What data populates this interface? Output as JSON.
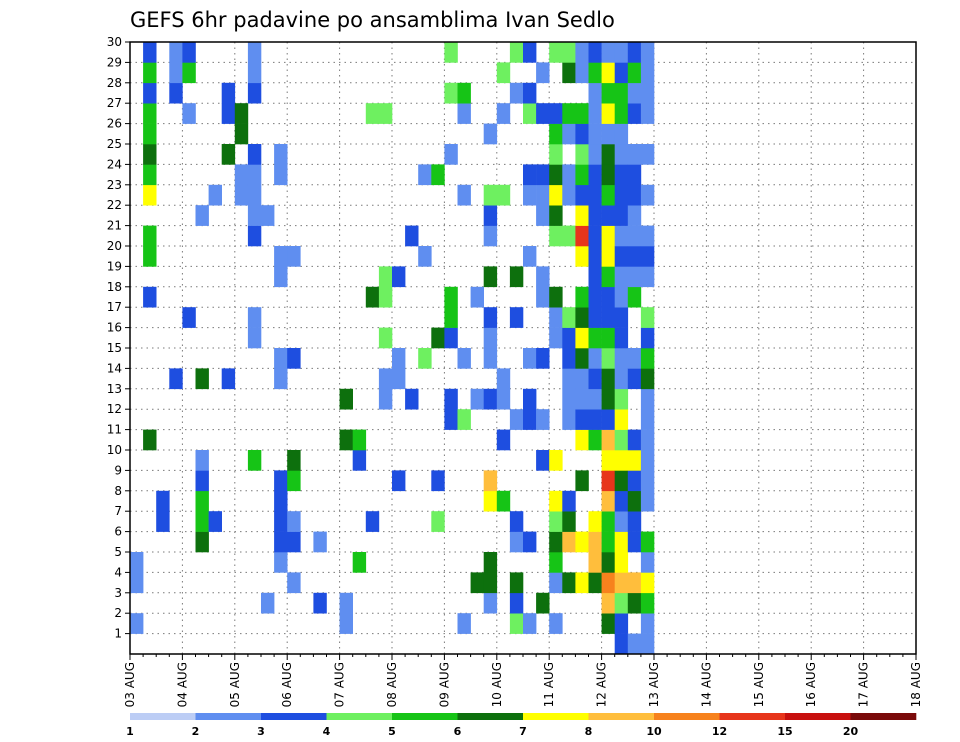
{
  "chart_data": {
    "type": "heatmap",
    "title": "GEFS 6hr padavine po ansamblima Ivan Sedlo",
    "x_axis": {
      "kind": "time",
      "steps_per_day": 4,
      "tick_labels": [
        "03 AUG",
        "04 AUG",
        "05 AUG",
        "06 AUG",
        "07 AUG",
        "08 AUG",
        "09 AUG",
        "10 AUG",
        "11 AUG",
        "12 AUG",
        "13 AUG",
        "14 AUG",
        "15 AUG",
        "16 AUG",
        "17 AUG",
        "18 AUG"
      ]
    },
    "y_axis": {
      "kind": "ensemble member",
      "range": [
        0,
        30
      ],
      "tick_labels": [
        "1",
        "2",
        "3",
        "4",
        "5",
        "6",
        "7",
        "8",
        "9",
        "10",
        "11",
        "12",
        "13",
        "14",
        "15",
        "16",
        "17",
        "18",
        "19",
        "20",
        "21",
        "22",
        "23",
        "24",
        "25",
        "26",
        "27",
        "28",
        "29",
        "30"
      ]
    },
    "grid": "dotted",
    "colorbar": {
      "position": "bottom",
      "levels": [
        "1",
        "2",
        "3",
        "4",
        "5",
        "6",
        "7",
        "8",
        "10",
        "12",
        "15",
        "20"
      ],
      "colors": [
        "#bccdf5",
        "#5f8ef0",
        "#1e4ee0",
        "#6ef060",
        "#16c416",
        "#0d700d",
        "#ffff00",
        "#ffbe3c",
        "#f7821d",
        "#e7351b",
        "#c8100e",
        "#7a0a0a"
      ]
    },
    "cells": [
      [
        0,
        1,
        1
      ],
      [
        0,
        3,
        1
      ],
      [
        0,
        4,
        1
      ],
      [
        1,
        10,
        5
      ],
      [
        1,
        17,
        2
      ],
      [
        1,
        19,
        4
      ],
      [
        1,
        20,
        4
      ],
      [
        1,
        22,
        6
      ],
      [
        1,
        23,
        4
      ],
      [
        1,
        24,
        5
      ],
      [
        1,
        25,
        4
      ],
      [
        1,
        26,
        4
      ],
      [
        1,
        27,
        2
      ],
      [
        1,
        28,
        4
      ],
      [
        1,
        29,
        2
      ],
      [
        2,
        6,
        2
      ],
      [
        2,
        7,
        2
      ],
      [
        3,
        13,
        2
      ],
      [
        3,
        27,
        2
      ],
      [
        3,
        28,
        1
      ],
      [
        3,
        29,
        1
      ],
      [
        4,
        16,
        2
      ],
      [
        4,
        26,
        1
      ],
      [
        4,
        28,
        4
      ],
      [
        4,
        29,
        2
      ],
      [
        5,
        5,
        5
      ],
      [
        5,
        6,
        4
      ],
      [
        5,
        7,
        4
      ],
      [
        5,
        8,
        2
      ],
      [
        5,
        9,
        1
      ],
      [
        5,
        13,
        5
      ],
      [
        5,
        21,
        1
      ],
      [
        6,
        6,
        2
      ],
      [
        6,
        22,
        1
      ],
      [
        7,
        13,
        2
      ],
      [
        7,
        24,
        5
      ],
      [
        7,
        26,
        2
      ],
      [
        7,
        27,
        2
      ],
      [
        8,
        22,
        1
      ],
      [
        8,
        23,
        1
      ],
      [
        8,
        25,
        5
      ],
      [
        8,
        26,
        5
      ],
      [
        9,
        9,
        4
      ],
      [
        9,
        15,
        1
      ],
      [
        9,
        16,
        1
      ],
      [
        9,
        20,
        2
      ],
      [
        9,
        21,
        1
      ],
      [
        9,
        22,
        1
      ],
      [
        9,
        23,
        1
      ],
      [
        9,
        24,
        2
      ],
      [
        9,
        27,
        2
      ],
      [
        9,
        28,
        1
      ],
      [
        9,
        29,
        1
      ],
      [
        10,
        2,
        1
      ],
      [
        10,
        21,
        1
      ],
      [
        11,
        4,
        1
      ],
      [
        11,
        5,
        2
      ],
      [
        11,
        6,
        2
      ],
      [
        11,
        7,
        2
      ],
      [
        11,
        8,
        2
      ],
      [
        11,
        13,
        1
      ],
      [
        11,
        14,
        1
      ],
      [
        11,
        18,
        1
      ],
      [
        11,
        19,
        1
      ],
      [
        11,
        23,
        1
      ],
      [
        11,
        24,
        1
      ],
      [
        12,
        3,
        1
      ],
      [
        12,
        5,
        2
      ],
      [
        12,
        6,
        1
      ],
      [
        12,
        8,
        4
      ],
      [
        12,
        9,
        5
      ],
      [
        12,
        14,
        2
      ],
      [
        12,
        19,
        1
      ],
      [
        14,
        2,
        2
      ],
      [
        14,
        5,
        1
      ],
      [
        16,
        1,
        1
      ],
      [
        16,
        2,
        1
      ],
      [
        16,
        10,
        5
      ],
      [
        16,
        12,
        5
      ],
      [
        17,
        4,
        4
      ],
      [
        17,
        9,
        2
      ],
      [
        17,
        10,
        4
      ],
      [
        18,
        6,
        2
      ],
      [
        18,
        17,
        5
      ],
      [
        18,
        26,
        3
      ],
      [
        19,
        12,
        1
      ],
      [
        19,
        13,
        1
      ],
      [
        19,
        15,
        3
      ],
      [
        19,
        17,
        3
      ],
      [
        19,
        18,
        3
      ],
      [
        19,
        26,
        3
      ],
      [
        20,
        8,
        2
      ],
      [
        20,
        13,
        1
      ],
      [
        20,
        14,
        1
      ],
      [
        20,
        18,
        2
      ],
      [
        21,
        12,
        2
      ],
      [
        21,
        20,
        2
      ],
      [
        22,
        14,
        3
      ],
      [
        22,
        19,
        1
      ],
      [
        22,
        23,
        1
      ],
      [
        23,
        6,
        3
      ],
      [
        23,
        8,
        2
      ],
      [
        23,
        15,
        5
      ],
      [
        23,
        23,
        4
      ],
      [
        24,
        11,
        2
      ],
      [
        24,
        12,
        2
      ],
      [
        24,
        15,
        2
      ],
      [
        24,
        16,
        4
      ],
      [
        24,
        17,
        4
      ],
      [
        24,
        24,
        1
      ],
      [
        24,
        27,
        3
      ],
      [
        24,
        29,
        3
      ],
      [
        25,
        1,
        1
      ],
      [
        25,
        11,
        3
      ],
      [
        25,
        14,
        1
      ],
      [
        25,
        22,
        1
      ],
      [
        25,
        26,
        1
      ],
      [
        25,
        27,
        4
      ],
      [
        26,
        3,
        5
      ],
      [
        26,
        12,
        1
      ],
      [
        26,
        17,
        1
      ],
      [
        27,
        2,
        1
      ],
      [
        27,
        3,
        5
      ],
      [
        27,
        4,
        5
      ],
      [
        27,
        7,
        6
      ],
      [
        27,
        8,
        7
      ],
      [
        27,
        12,
        2
      ],
      [
        27,
        14,
        1
      ],
      [
        27,
        15,
        1
      ],
      [
        27,
        16,
        2
      ],
      [
        27,
        18,
        5
      ],
      [
        27,
        20,
        1
      ],
      [
        27,
        21,
        2
      ],
      [
        27,
        22,
        3
      ],
      [
        27,
        25,
        1
      ],
      [
        28,
        7,
        4
      ],
      [
        28,
        10,
        2
      ],
      [
        28,
        12,
        1
      ],
      [
        28,
        13,
        1
      ],
      [
        28,
        22,
        3
      ],
      [
        28,
        26,
        1
      ],
      [
        28,
        28,
        3
      ],
      [
        29,
        1,
        3
      ],
      [
        29,
        2,
        2
      ],
      [
        29,
        3,
        5
      ],
      [
        29,
        5,
        1
      ],
      [
        29,
        6,
        2
      ],
      [
        29,
        11,
        1
      ],
      [
        29,
        16,
        2
      ],
      [
        29,
        18,
        5
      ],
      [
        29,
        27,
        1
      ],
      [
        29,
        29,
        3
      ],
      [
        30,
        1,
        1
      ],
      [
        30,
        5,
        2
      ],
      [
        30,
        11,
        2
      ],
      [
        30,
        12,
        2
      ],
      [
        30,
        14,
        1
      ],
      [
        30,
        19,
        1
      ],
      [
        30,
        22,
        1
      ],
      [
        30,
        23,
        2
      ],
      [
        30,
        26,
        3
      ],
      [
        30,
        27,
        2
      ],
      [
        30,
        29,
        2
      ],
      [
        31,
        2,
        5
      ],
      [
        31,
        9,
        2
      ],
      [
        31,
        11,
        1
      ],
      [
        31,
        14,
        2
      ],
      [
        31,
        17,
        1
      ],
      [
        31,
        18,
        1
      ],
      [
        31,
        21,
        1
      ],
      [
        31,
        22,
        1
      ],
      [
        31,
        23,
        2
      ],
      [
        31,
        26,
        2
      ],
      [
        31,
        28,
        1
      ],
      [
        32,
        1,
        1
      ],
      [
        32,
        3,
        1
      ],
      [
        32,
        4,
        4
      ],
      [
        32,
        5,
        5
      ],
      [
        32,
        6,
        3
      ],
      [
        32,
        7,
        6
      ],
      [
        32,
        9,
        6
      ],
      [
        32,
        15,
        1
      ],
      [
        32,
        16,
        1
      ],
      [
        32,
        17,
        5
      ],
      [
        32,
        20,
        3
      ],
      [
        32,
        21,
        5
      ],
      [
        32,
        22,
        6
      ],
      [
        32,
        23,
        5
      ],
      [
        32,
        24,
        3
      ],
      [
        32,
        25,
        4
      ],
      [
        32,
        26,
        2
      ],
      [
        32,
        29,
        3
      ],
      [
        33,
        3,
        5
      ],
      [
        33,
        5,
        7
      ],
      [
        33,
        6,
        5
      ],
      [
        33,
        7,
        2
      ],
      [
        33,
        11,
        1
      ],
      [
        33,
        12,
        1
      ],
      [
        33,
        13,
        1
      ],
      [
        33,
        14,
        2
      ],
      [
        33,
        15,
        2
      ],
      [
        33,
        16,
        3
      ],
      [
        33,
        20,
        3
      ],
      [
        33,
        22,
        1
      ],
      [
        33,
        23,
        1
      ],
      [
        33,
        25,
        1
      ],
      [
        33,
        26,
        4
      ],
      [
        33,
        28,
        5
      ],
      [
        33,
        29,
        3
      ],
      [
        34,
        3,
        6
      ],
      [
        34,
        5,
        6
      ],
      [
        34,
        8,
        5
      ],
      [
        34,
        10,
        6
      ],
      [
        34,
        11,
        2
      ],
      [
        34,
        12,
        1
      ],
      [
        34,
        13,
        1
      ],
      [
        34,
        14,
        5
      ],
      [
        34,
        15,
        6
      ],
      [
        34,
        16,
        5
      ],
      [
        34,
        17,
        4
      ],
      [
        34,
        19,
        6
      ],
      [
        34,
        20,
        9
      ],
      [
        34,
        21,
        6
      ],
      [
        34,
        22,
        2
      ],
      [
        34,
        23,
        4
      ],
      [
        34,
        24,
        3
      ],
      [
        34,
        25,
        2
      ],
      [
        34,
        26,
        4
      ],
      [
        34,
        28,
        1
      ],
      [
        34,
        29,
        1
      ],
      [
        35,
        3,
        5
      ],
      [
        35,
        4,
        7
      ],
      [
        35,
        5,
        7
      ],
      [
        35,
        6,
        6
      ],
      [
        35,
        10,
        4
      ],
      [
        35,
        11,
        2
      ],
      [
        35,
        12,
        1
      ],
      [
        35,
        13,
        2
      ],
      [
        35,
        14,
        1
      ],
      [
        35,
        15,
        4
      ],
      [
        35,
        16,
        2
      ],
      [
        35,
        17,
        2
      ],
      [
        35,
        18,
        2
      ],
      [
        35,
        19,
        2
      ],
      [
        35,
        20,
        2
      ],
      [
        35,
        21,
        2
      ],
      [
        35,
        22,
        2
      ],
      [
        35,
        23,
        2
      ],
      [
        35,
        24,
        1
      ],
      [
        35,
        25,
        1
      ],
      [
        35,
        26,
        1
      ],
      [
        35,
        27,
        1
      ],
      [
        35,
        28,
        4
      ],
      [
        35,
        29,
        2
      ],
      [
        36,
        1,
        5
      ],
      [
        36,
        2,
        7
      ],
      [
        36,
        3,
        8
      ],
      [
        36,
        4,
        5
      ],
      [
        36,
        5,
        4
      ],
      [
        36,
        6,
        4
      ],
      [
        36,
        7,
        7
      ],
      [
        36,
        8,
        9
      ],
      [
        36,
        9,
        6
      ],
      [
        36,
        10,
        7
      ],
      [
        36,
        11,
        2
      ],
      [
        36,
        12,
        5
      ],
      [
        36,
        13,
        5
      ],
      [
        36,
        14,
        3
      ],
      [
        36,
        15,
        4
      ],
      [
        36,
        16,
        2
      ],
      [
        36,
        17,
        2
      ],
      [
        36,
        18,
        4
      ],
      [
        36,
        19,
        6
      ],
      [
        36,
        20,
        6
      ],
      [
        36,
        21,
        2
      ],
      [
        36,
        22,
        4
      ],
      [
        36,
        23,
        5
      ],
      [
        36,
        24,
        5
      ],
      [
        36,
        25,
        1
      ],
      [
        36,
        26,
        6
      ],
      [
        36,
        27,
        4
      ],
      [
        36,
        28,
        6
      ],
      [
        36,
        29,
        1
      ],
      [
        37,
        0,
        2
      ],
      [
        37,
        1,
        2
      ],
      [
        37,
        2,
        3
      ],
      [
        37,
        3,
        7
      ],
      [
        37,
        4,
        6
      ],
      [
        37,
        5,
        6
      ],
      [
        37,
        6,
        1
      ],
      [
        37,
        7,
        2
      ],
      [
        37,
        8,
        5
      ],
      [
        37,
        9,
        6
      ],
      [
        37,
        10,
        3
      ],
      [
        37,
        11,
        6
      ],
      [
        37,
        12,
        3
      ],
      [
        37,
        13,
        1
      ],
      [
        37,
        14,
        1
      ],
      [
        37,
        15,
        2
      ],
      [
        37,
        16,
        2
      ],
      [
        37,
        17,
        1
      ],
      [
        37,
        18,
        1
      ],
      [
        37,
        19,
        2
      ],
      [
        37,
        20,
        1
      ],
      [
        37,
        21,
        2
      ],
      [
        37,
        22,
        2
      ],
      [
        37,
        23,
        2
      ],
      [
        37,
        24,
        1
      ],
      [
        37,
        25,
        1
      ],
      [
        37,
        26,
        4
      ],
      [
        37,
        27,
        4
      ],
      [
        37,
        28,
        2
      ],
      [
        37,
        29,
        1
      ],
      [
        38,
        0,
        1
      ],
      [
        38,
        2,
        5
      ],
      [
        38,
        3,
        7
      ],
      [
        38,
        5,
        2
      ],
      [
        38,
        6,
        2
      ],
      [
        38,
        7,
        5
      ],
      [
        38,
        8,
        2
      ],
      [
        38,
        9,
        6
      ],
      [
        38,
        10,
        2
      ],
      [
        38,
        13,
        2
      ],
      [
        38,
        14,
        1
      ],
      [
        38,
        17,
        4
      ],
      [
        38,
        18,
        1
      ],
      [
        38,
        19,
        2
      ],
      [
        38,
        20,
        1
      ],
      [
        38,
        21,
        1
      ],
      [
        38,
        22,
        2
      ],
      [
        38,
        23,
        2
      ],
      [
        38,
        24,
        1
      ],
      [
        38,
        26,
        2
      ],
      [
        38,
        27,
        1
      ],
      [
        38,
        28,
        4
      ],
      [
        38,
        29,
        2
      ],
      [
        39,
        0,
        1
      ],
      [
        39,
        1,
        1
      ],
      [
        39,
        2,
        4
      ],
      [
        39,
        3,
        6
      ],
      [
        39,
        4,
        1
      ],
      [
        39,
        5,
        4
      ],
      [
        39,
        7,
        1
      ],
      [
        39,
        8,
        1
      ],
      [
        39,
        9,
        1
      ],
      [
        39,
        10,
        1
      ],
      [
        39,
        11,
        1
      ],
      [
        39,
        12,
        1
      ],
      [
        39,
        13,
        5
      ],
      [
        39,
        14,
        4
      ],
      [
        39,
        15,
        2
      ],
      [
        39,
        16,
        3
      ],
      [
        39,
        18,
        1
      ],
      [
        39,
        19,
        2
      ],
      [
        39,
        20,
        1
      ],
      [
        39,
        22,
        1
      ],
      [
        39,
        24,
        1
      ],
      [
        39,
        26,
        1
      ],
      [
        39,
        27,
        1
      ],
      [
        39,
        28,
        1
      ],
      [
        39,
        29,
        1
      ]
    ]
  }
}
